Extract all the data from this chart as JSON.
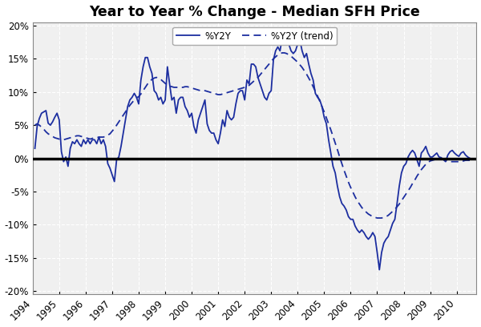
{
  "title": "Year to Year % Change - Median SFH Price",
  "line_color": "#1C2EA0",
  "trend_color": "#1C2EA0",
  "background_color": "#FFFFFF",
  "plot_bg_color": "#F0F0F0",
  "grid_color": "#FFFFFF",
  "zero_line_color": "#000000",
  "ylim": [
    -0.205,
    0.205
  ],
  "yticks": [
    -0.2,
    -0.15,
    -0.1,
    -0.05,
    0.0,
    0.05,
    0.1,
    0.15,
    0.2
  ],
  "ytick_labels": [
    "-20%",
    "-15%",
    "-10%",
    "-5%",
    "0%",
    "5%",
    "10%",
    "15%",
    "20%"
  ],
  "legend_labels": [
    "%Y2Y",
    "%Y2Y (trend)"
  ],
  "start_year": 1994,
  "start_month": 2,
  "xtick_years": [
    1994,
    1995,
    1996,
    1997,
    1998,
    1999,
    2000,
    2001,
    2002,
    2003,
    2004,
    2005,
    2006,
    2007,
    2008,
    2009,
    2010
  ],
  "yoy_data": [
    0.015,
    0.048,
    0.06,
    0.068,
    0.07,
    0.072,
    0.053,
    0.05,
    0.055,
    0.062,
    0.068,
    0.058,
    0.01,
    -0.005,
    0.002,
    -0.012,
    0.015,
    0.025,
    0.022,
    0.028,
    0.022,
    0.018,
    0.028,
    0.022,
    0.028,
    0.022,
    0.028,
    0.028,
    0.022,
    0.032,
    0.022,
    0.028,
    0.018,
    -0.008,
    -0.015,
    -0.025,
    -0.035,
    -0.002,
    0.002,
    0.018,
    0.038,
    0.058,
    0.078,
    0.088,
    0.092,
    0.098,
    0.092,
    0.082,
    0.118,
    0.138,
    0.152,
    0.152,
    0.138,
    0.128,
    0.102,
    0.098,
    0.088,
    0.092,
    0.082,
    0.088,
    0.138,
    0.112,
    0.088,
    0.092,
    0.068,
    0.088,
    0.092,
    0.092,
    0.078,
    0.072,
    0.062,
    0.068,
    0.048,
    0.038,
    0.058,
    0.068,
    0.078,
    0.088,
    0.052,
    0.042,
    0.038,
    0.038,
    0.028,
    0.022,
    0.038,
    0.058,
    0.048,
    0.072,
    0.062,
    0.058,
    0.062,
    0.082,
    0.098,
    0.102,
    0.102,
    0.088,
    0.118,
    0.112,
    0.142,
    0.142,
    0.138,
    0.122,
    0.112,
    0.102,
    0.092,
    0.088,
    0.098,
    0.102,
    0.148,
    0.162,
    0.168,
    0.162,
    0.182,
    0.192,
    0.182,
    0.172,
    0.162,
    0.158,
    0.162,
    0.172,
    0.178,
    0.162,
    0.152,
    0.158,
    0.142,
    0.128,
    0.118,
    0.098,
    0.092,
    0.088,
    0.078,
    0.062,
    0.052,
    0.028,
    0.008,
    -0.012,
    -0.022,
    -0.042,
    -0.058,
    -0.068,
    -0.072,
    -0.078,
    -0.088,
    -0.092,
    -0.092,
    -0.102,
    -0.108,
    -0.112,
    -0.108,
    -0.112,
    -0.118,
    -0.122,
    -0.118,
    -0.112,
    -0.118,
    -0.142,
    -0.168,
    -0.142,
    -0.128,
    -0.122,
    -0.118,
    -0.108,
    -0.098,
    -0.092,
    -0.068,
    -0.042,
    -0.022,
    -0.012,
    -0.008,
    0.002,
    0.008,
    0.012,
    0.008,
    -0.002,
    -0.012,
    0.008,
    0.012,
    0.018,
    0.008,
    0.002,
    0.002,
    0.005,
    0.008,
    0.002,
    0.001,
    -0.002,
    -0.005,
    0.005,
    0.01,
    0.012,
    0.008,
    0.005,
    0.003,
    0.008,
    0.01,
    0.005,
    0.002,
    0.0
  ],
  "trend_data": [
    0.05,
    0.052,
    0.05,
    0.047,
    0.044,
    0.04,
    0.037,
    0.035,
    0.033,
    0.031,
    0.03,
    0.029,
    0.028,
    0.028,
    0.029,
    0.03,
    0.031,
    0.032,
    0.033,
    0.034,
    0.034,
    0.033,
    0.032,
    0.031,
    0.03,
    0.029,
    0.03,
    0.031,
    0.031,
    0.032,
    0.032,
    0.032,
    0.033,
    0.035,
    0.037,
    0.041,
    0.045,
    0.05,
    0.055,
    0.06,
    0.065,
    0.07,
    0.075,
    0.08,
    0.084,
    0.088,
    0.091,
    0.093,
    0.097,
    0.102,
    0.107,
    0.112,
    0.116,
    0.119,
    0.121,
    0.122,
    0.121,
    0.119,
    0.116,
    0.113,
    0.111,
    0.109,
    0.108,
    0.107,
    0.107,
    0.107,
    0.107,
    0.107,
    0.108,
    0.108,
    0.107,
    0.106,
    0.105,
    0.104,
    0.103,
    0.102,
    0.102,
    0.102,
    0.101,
    0.1,
    0.099,
    0.098,
    0.097,
    0.096,
    0.096,
    0.097,
    0.098,
    0.099,
    0.1,
    0.101,
    0.102,
    0.103,
    0.104,
    0.105,
    0.106,
    0.107,
    0.108,
    0.11,
    0.113,
    0.116,
    0.119,
    0.122,
    0.126,
    0.13,
    0.134,
    0.138,
    0.142,
    0.146,
    0.15,
    0.153,
    0.156,
    0.158,
    0.159,
    0.159,
    0.158,
    0.156,
    0.154,
    0.151,
    0.148,
    0.145,
    0.141,
    0.137,
    0.132,
    0.127,
    0.121,
    0.115,
    0.108,
    0.101,
    0.094,
    0.086,
    0.078,
    0.07,
    0.061,
    0.052,
    0.043,
    0.033,
    0.023,
    0.013,
    0.002,
    -0.008,
    -0.018,
    -0.027,
    -0.036,
    -0.044,
    -0.051,
    -0.058,
    -0.064,
    -0.069,
    -0.074,
    -0.078,
    -0.081,
    -0.084,
    -0.086,
    -0.088,
    -0.089,
    -0.09,
    -0.09,
    -0.09,
    -0.089,
    -0.088,
    -0.086,
    -0.083,
    -0.08,
    -0.077,
    -0.073,
    -0.069,
    -0.064,
    -0.059,
    -0.054,
    -0.049,
    -0.044,
    -0.038,
    -0.033,
    -0.027,
    -0.022,
    -0.017,
    -0.013,
    -0.009,
    -0.006,
    -0.004,
    -0.003,
    -0.002,
    -0.001,
    -0.001,
    -0.001,
    -0.002,
    -0.003,
    -0.004,
    -0.005,
    -0.005,
    -0.005,
    -0.005,
    -0.005,
    -0.004,
    -0.004,
    -0.003,
    -0.003,
    -0.003
  ]
}
